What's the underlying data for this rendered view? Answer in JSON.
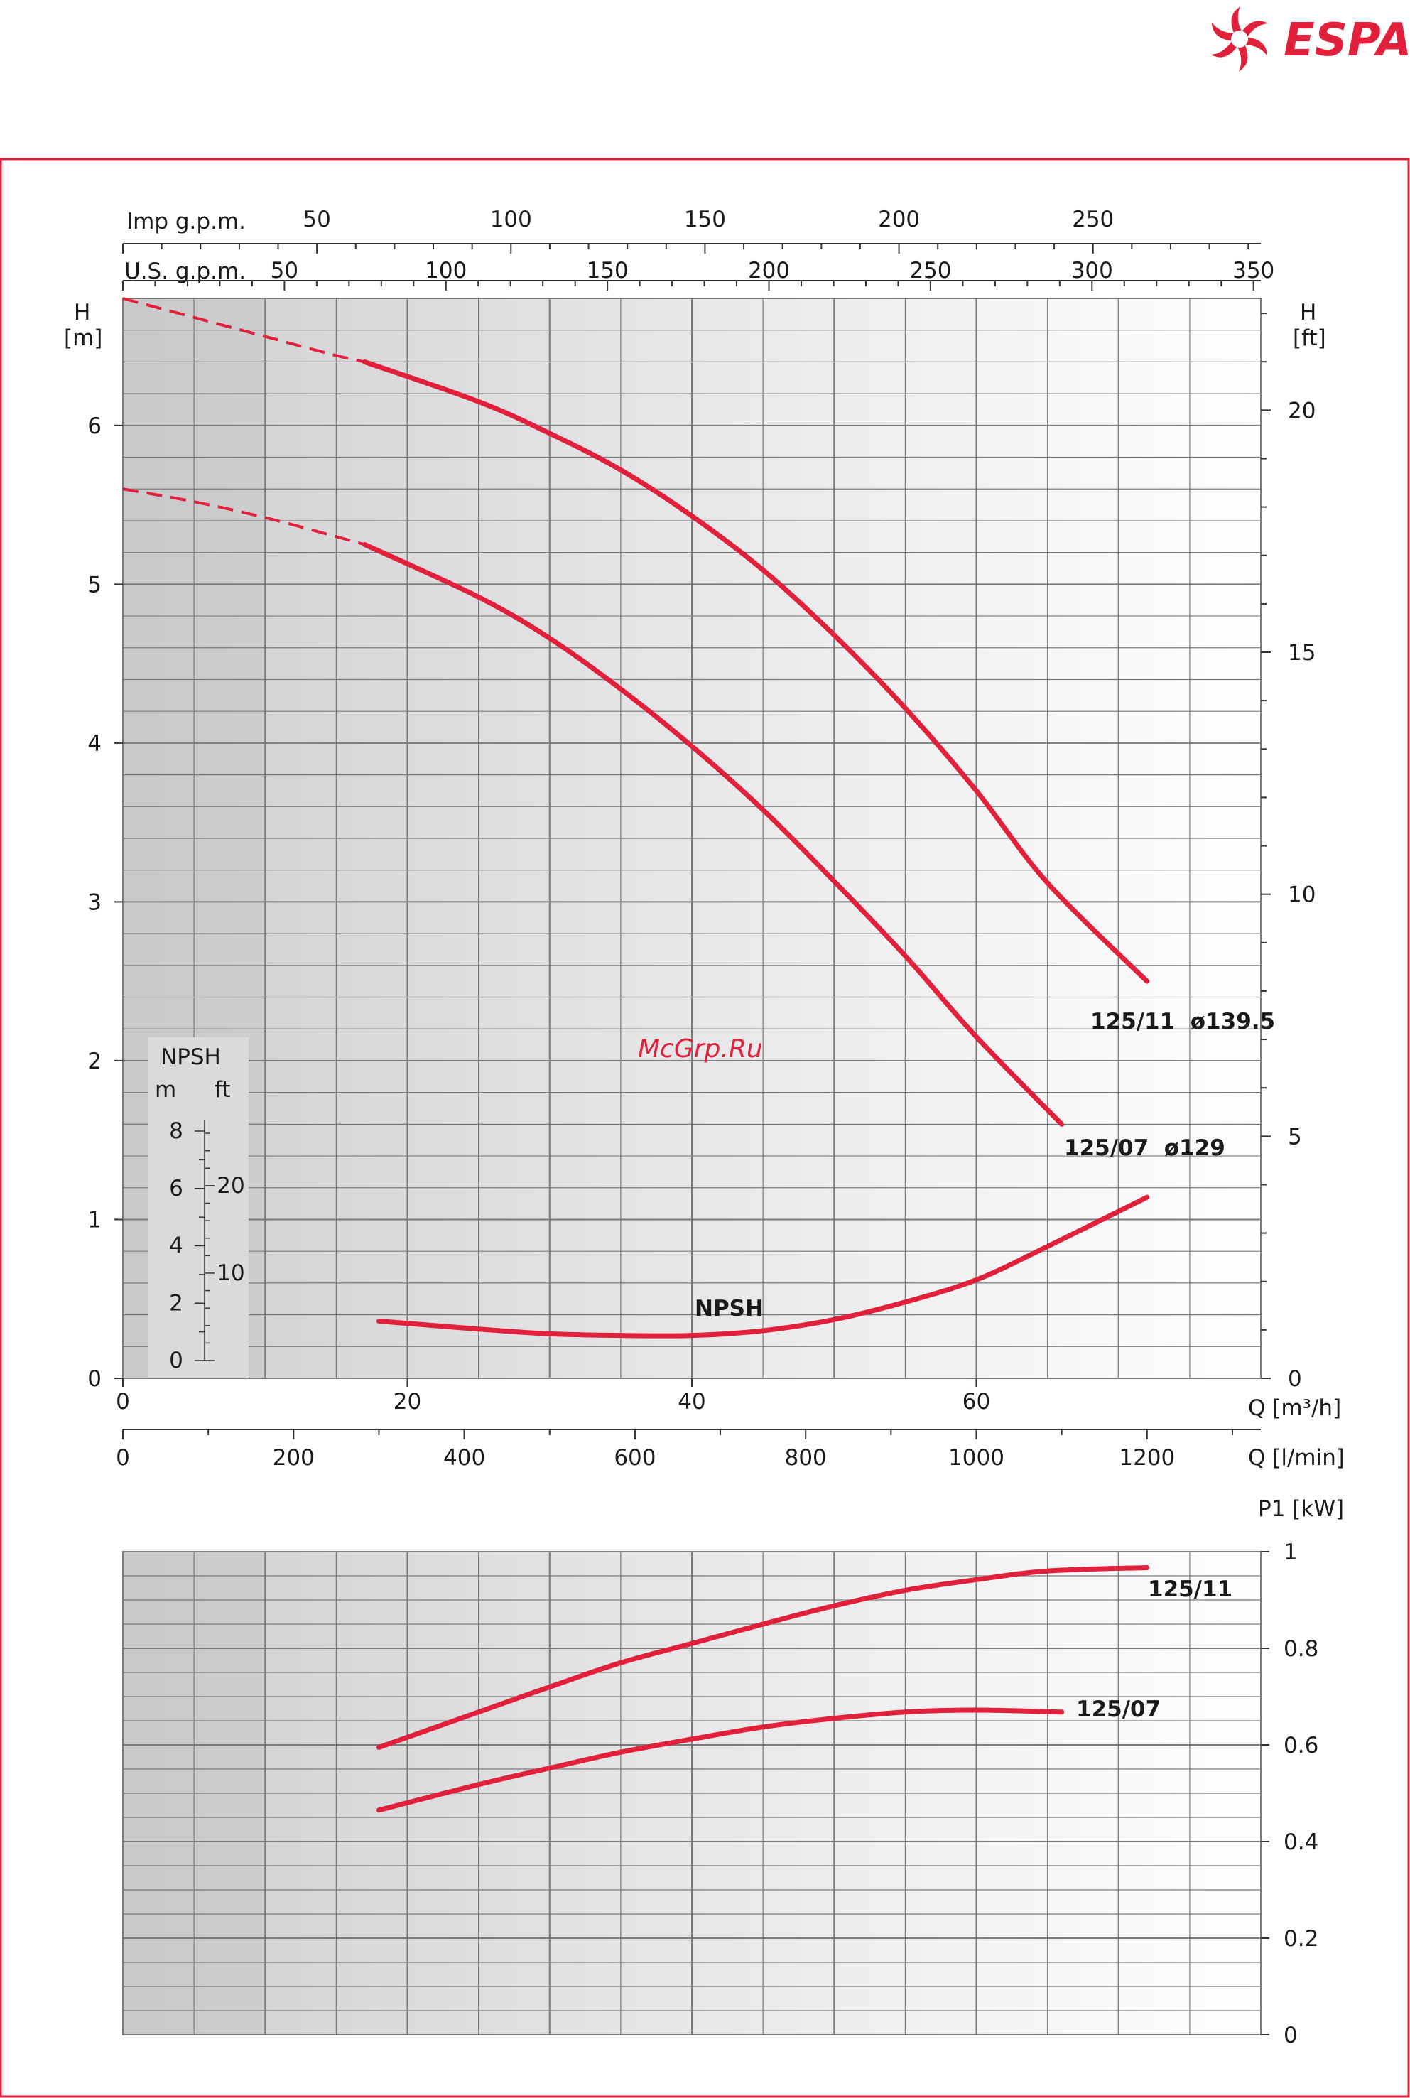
{
  "brand": {
    "name": "ESPA",
    "color": "#e1203b",
    "icon": "espa-swirl-logo"
  },
  "watermark": "McGrp.Ru",
  "colors": {
    "curve": "#e1203b",
    "frame": "#e1203b",
    "grid": "#7a7a7a",
    "text": "#1a1a1a"
  },
  "chart_data": [
    {
      "type": "line",
      "name": "head-curves",
      "x": {
        "label": "Q [m³/h]",
        "range": [
          0,
          80
        ],
        "ticks": [
          0,
          20,
          40,
          60
        ]
      },
      "x_secondary": {
        "label": "Q [l/min]",
        "ticks": [
          0,
          200,
          400,
          600,
          800,
          1000,
          1200
        ]
      },
      "x_top_1": {
        "label": "Imp g.p.m.",
        "ticks": [
          50,
          100,
          150,
          200,
          250
        ]
      },
      "x_top_2": {
        "label": "U.S. g.p.m.",
        "ticks": [
          50,
          100,
          150,
          200,
          250,
          300,
          350
        ]
      },
      "y": {
        "label_line1": "H",
        "label_line2": "[m]",
        "range": [
          0,
          6.8
        ],
        "ticks": [
          0,
          1,
          2,
          3,
          4,
          5,
          6
        ]
      },
      "y_right": {
        "label_line1": "H",
        "label_line2": "[ft]",
        "ticks": [
          0,
          5,
          10,
          15,
          20
        ]
      },
      "npsh_scale": {
        "title": "NPSH",
        "unit_m": "m",
        "unit_ft": "ft",
        "m_ticks": [
          0,
          2,
          4,
          6,
          8
        ],
        "ft_ticks": [
          10,
          20
        ]
      },
      "series": [
        {
          "name": "125/11  ø139.5",
          "dashed": [
            [
              0,
              6.8
            ],
            [
              5,
              6.68
            ],
            [
              10,
              6.56
            ],
            [
              15,
              6.44
            ],
            [
              17,
              6.4
            ]
          ],
          "solid": [
            [
              17,
              6.4
            ],
            [
              25,
              6.15
            ],
            [
              30,
              5.95
            ],
            [
              35,
              5.72
            ],
            [
              40,
              5.43
            ],
            [
              45,
              5.09
            ],
            [
              50,
              4.68
            ],
            [
              55,
              4.22
            ],
            [
              60,
              3.7
            ],
            [
              65,
              3.12
            ],
            [
              72,
              2.5
            ]
          ]
        },
        {
          "name": "125/07  ø129",
          "dashed": [
            [
              0,
              5.6
            ],
            [
              5,
              5.52
            ],
            [
              10,
              5.42
            ],
            [
              15,
              5.3
            ],
            [
              17,
              5.25
            ]
          ],
          "solid": [
            [
              17,
              5.25
            ],
            [
              25,
              4.92
            ],
            [
              30,
              4.66
            ],
            [
              35,
              4.34
            ],
            [
              40,
              3.98
            ],
            [
              45,
              3.58
            ],
            [
              50,
              3.13
            ],
            [
              55,
              2.66
            ],
            [
              60,
              2.15
            ],
            [
              66,
              1.6
            ]
          ]
        },
        {
          "name": "NPSH",
          "dashed": [],
          "solid": [
            [
              18,
              0.36
            ],
            [
              25,
              0.31
            ],
            [
              30,
              0.28
            ],
            [
              35,
              0.27
            ],
            [
              40,
              0.27
            ],
            [
              45,
              0.3
            ],
            [
              50,
              0.37
            ],
            [
              55,
              0.48
            ],
            [
              60,
              0.62
            ],
            [
              65,
              0.83
            ],
            [
              72,
              1.14
            ]
          ]
        }
      ]
    },
    {
      "type": "line",
      "name": "power-curves",
      "x": {
        "range": [
          0,
          80
        ]
      },
      "y": {
        "label": "P1 [kW]",
        "range": [
          0,
          1
        ],
        "ticks": [
          "0",
          "0.2",
          "0.4",
          "0.6",
          "0.8",
          "1"
        ]
      },
      "series": [
        {
          "name": "125/11",
          "solid": [
            [
              18,
              0.595
            ],
            [
              25,
              0.668
            ],
            [
              30,
              0.72
            ],
            [
              35,
              0.77
            ],
            [
              40,
              0.81
            ],
            [
              45,
              0.85
            ],
            [
              50,
              0.888
            ],
            [
              55,
              0.92
            ],
            [
              60,
              0.942
            ],
            [
              65,
              0.96
            ],
            [
              72,
              0.967
            ]
          ]
        },
        {
          "name": "125/07",
          "solid": [
            [
              18,
              0.465
            ],
            [
              25,
              0.518
            ],
            [
              30,
              0.552
            ],
            [
              35,
              0.585
            ],
            [
              40,
              0.612
            ],
            [
              45,
              0.637
            ],
            [
              50,
              0.655
            ],
            [
              55,
              0.668
            ],
            [
              60,
              0.672
            ],
            [
              66,
              0.668
            ]
          ]
        }
      ]
    }
  ]
}
